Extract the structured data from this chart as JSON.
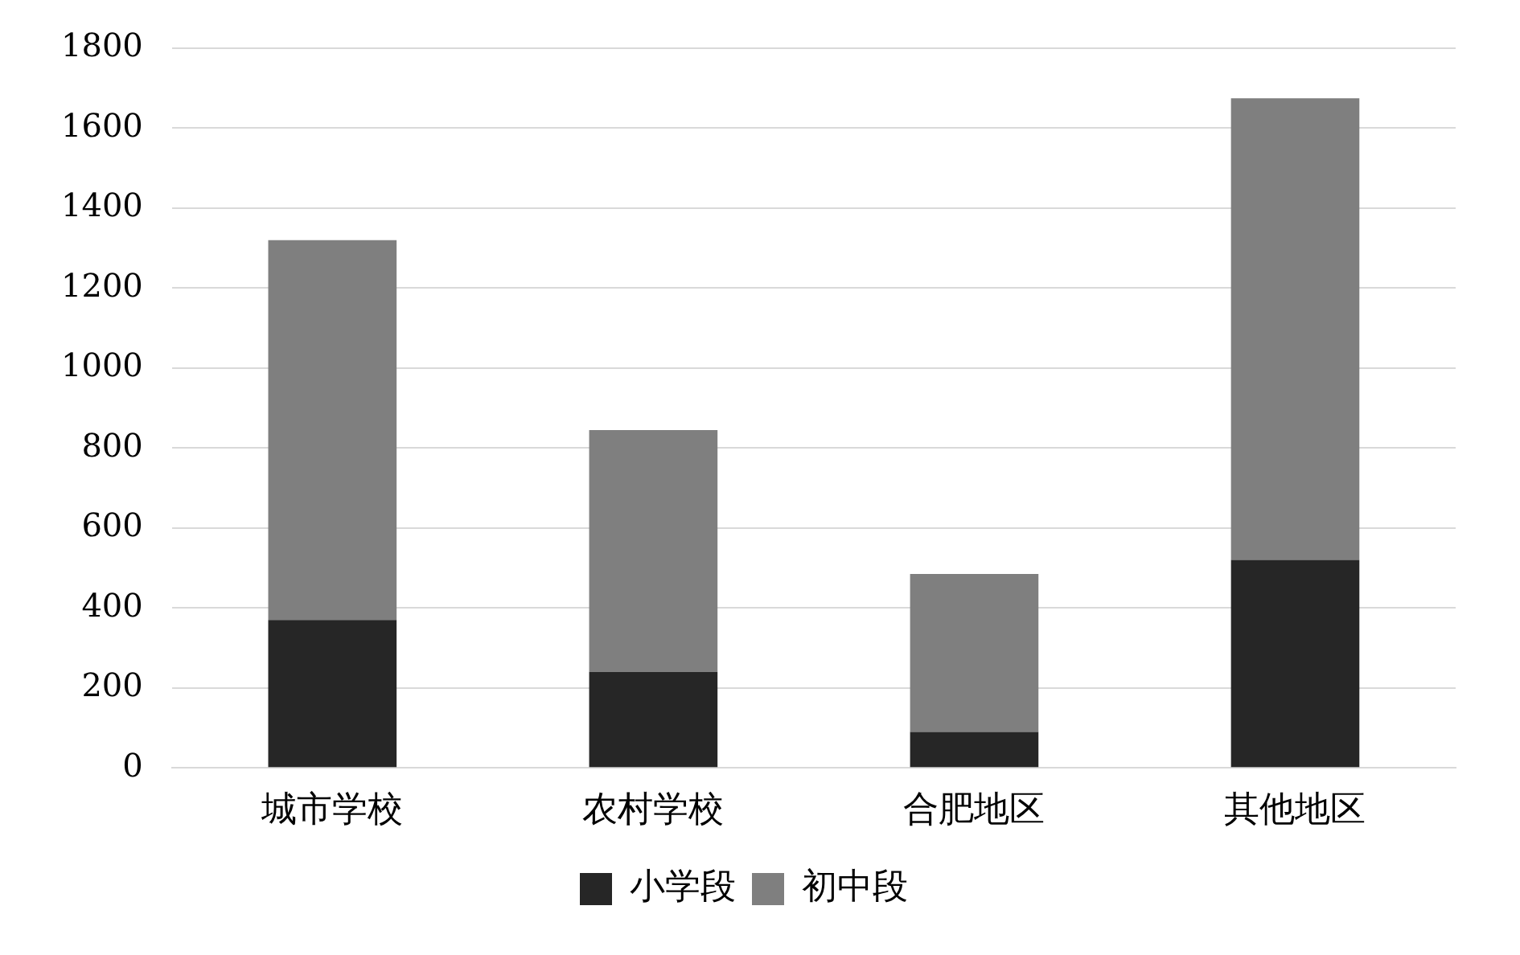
{
  "chart_data": {
    "type": "bar",
    "stacked": true,
    "categories": [
      "城市学校",
      "农村学校",
      "合肥地区",
      "其他地区"
    ],
    "series": [
      {
        "name": "小学段",
        "color": "#262626",
        "values": [
          370,
          240,
          90,
          520
        ]
      },
      {
        "name": "初中段",
        "color": "#7f7f7f",
        "values": [
          950,
          605,
          395,
          1155
        ]
      }
    ],
    "ylim": [
      0,
      1800
    ],
    "yticks": [
      0,
      200,
      400,
      600,
      800,
      1000,
      1200,
      1400,
      1600,
      1800
    ],
    "grid": "y",
    "legend": "bottom"
  }
}
